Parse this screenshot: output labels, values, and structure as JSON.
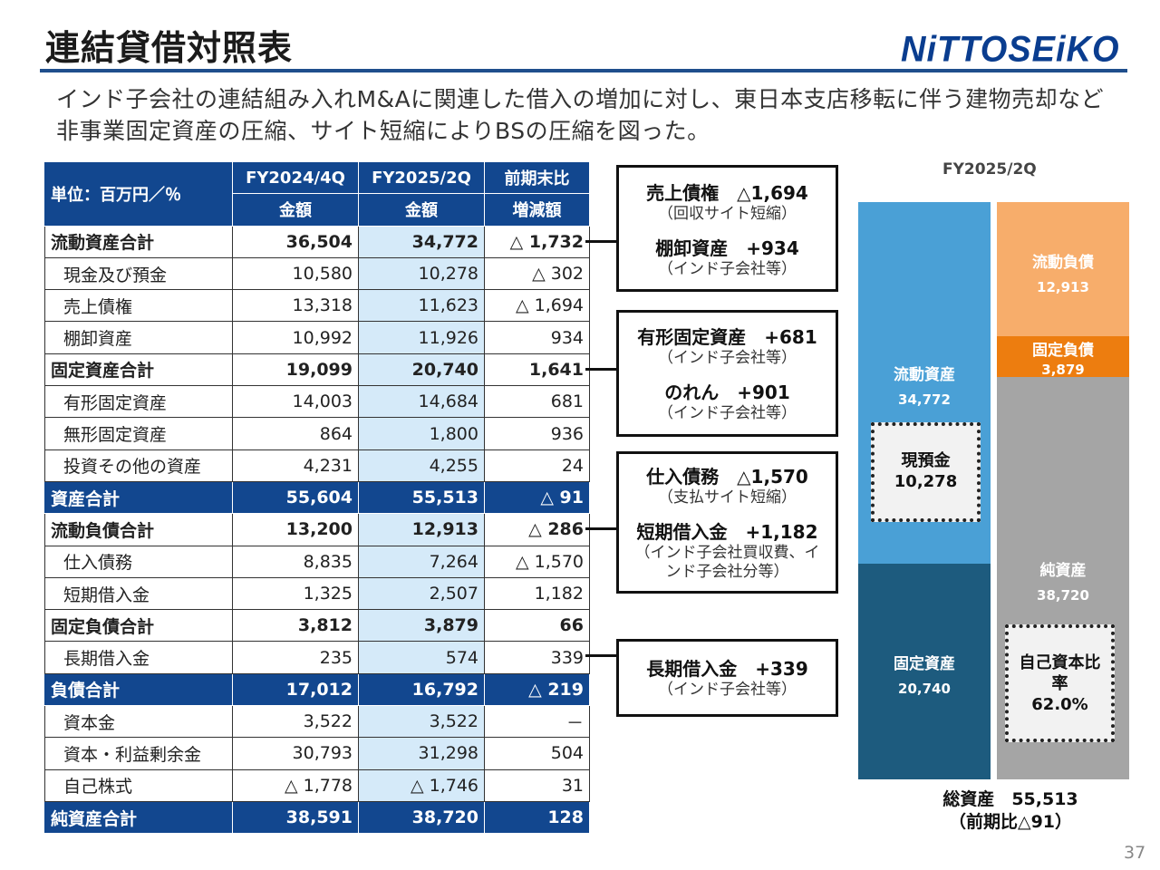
{
  "title": "連結貸借対照表",
  "logo": "NiTTOSEiKO",
  "intro": "インド子会社の連結組み入れM&Aに関連した借入の増加に対し、東日本支店移転に伴う建物売却など非事業固定資産の圧縮、サイト短縮によりBSの圧縮を図った。",
  "table": {
    "unit": "単位：百万円／％",
    "col_fy1": "FY2024/4Q",
    "col_fy2": "FY2025/2Q",
    "col_diff": "前期末比",
    "sub_amount1": "金額",
    "sub_amount2": "金額",
    "sub_diff": "増減額",
    "rows": [
      {
        "label": "流動資産合計",
        "v1": "36,504",
        "v2": "34,772",
        "d": "△ 1,732"
      },
      {
        "label": "現金及び預金",
        "v1": "10,580",
        "v2": "10,278",
        "d": "△ 302"
      },
      {
        "label": "売上債権",
        "v1": "13,318",
        "v2": "11,623",
        "d": "△ 1,694"
      },
      {
        "label": "棚卸資産",
        "v1": "10,992",
        "v2": "11,926",
        "d": "934"
      },
      {
        "label": "固定資産合計",
        "v1": "19,099",
        "v2": "20,740",
        "d": "1,641"
      },
      {
        "label": "有形固定資産",
        "v1": "14,003",
        "v2": "14,684",
        "d": "681"
      },
      {
        "label": "無形固定資産",
        "v1": "864",
        "v2": "1,800",
        "d": "936"
      },
      {
        "label": "投資その他の資産",
        "v1": "4,231",
        "v2": "4,255",
        "d": "24"
      },
      {
        "label": "資産合計",
        "v1": "55,604",
        "v2": "55,513",
        "d": "△ 91"
      },
      {
        "label": "流動負債合計",
        "v1": "13,200",
        "v2": "12,913",
        "d": "△ 286"
      },
      {
        "label": "仕入債務",
        "v1": "8,835",
        "v2": "7,264",
        "d": "△ 1,570"
      },
      {
        "label": "短期借入金",
        "v1": "1,325",
        "v2": "2,507",
        "d": "1,182"
      },
      {
        "label": "固定負債合計",
        "v1": "3,812",
        "v2": "3,879",
        "d": "66"
      },
      {
        "label": "長期借入金",
        "v1": "235",
        "v2": "574",
        "d": "339"
      },
      {
        "label": "負債合計",
        "v1": "17,012",
        "v2": "16,792",
        "d": "△ 219"
      },
      {
        "label": "資本金",
        "v1": "3,522",
        "v2": "3,522",
        "d": "－"
      },
      {
        "label": "資本・利益剰余金",
        "v1": "30,793",
        "v2": "31,298",
        "d": "504"
      },
      {
        "label": "自己株式",
        "v1": "△ 1,778",
        "v2": "△ 1,746",
        "d": "31"
      },
      {
        "label": "純資産合計",
        "v1": "38,591",
        "v2": "38,720",
        "d": "128"
      }
    ]
  },
  "notes": [
    {
      "h1": "売上債権　△1,694",
      "s1": "（回収サイト短縮）",
      "h2": "棚卸資産　+934",
      "s2": "（インド子会社等）"
    },
    {
      "h1": "有形固定資産　+681",
      "s1": "（インド子会社等）",
      "h2": "のれん　+901",
      "s2": "（インド子会社等）"
    },
    {
      "h1": "仕入債務　△1,570",
      "s1": "（支払サイト短縮）",
      "h2": "短期借入金　+1,182",
      "s2": "（インド子会社買収費、インド子会社分等）"
    },
    {
      "h1": "長期借入金　+339",
      "s1": "（インド子会社等）"
    }
  ],
  "bars": {
    "period": "FY2025/2Q",
    "current_assets_label": "流動資産",
    "current_assets_value": "34,772",
    "fixed_assets_label": "固定資産",
    "fixed_assets_value": "20,740",
    "cash_label": "現預金",
    "cash_value": "10,278",
    "current_liab_label": "流動負債",
    "current_liab_value": "12,913",
    "fixed_liab_label": "固定負債",
    "fixed_liab_value": "3,879",
    "net_assets_label": "純資産",
    "net_assets_value": "38,720",
    "equity_ratio_label": "自己資本比率",
    "equity_ratio_value": "62.0%",
    "total_label": "総資産　55,513",
    "total_change": "（前期比△91）",
    "colors": {
      "current_assets": "#4aa0d6",
      "fixed_assets": "#1d5b7e",
      "current_liab": "#f7ad6b",
      "fixed_liab": "#ed7d0f",
      "net_assets": "#a5a5a5"
    }
  },
  "page_number": "37"
}
